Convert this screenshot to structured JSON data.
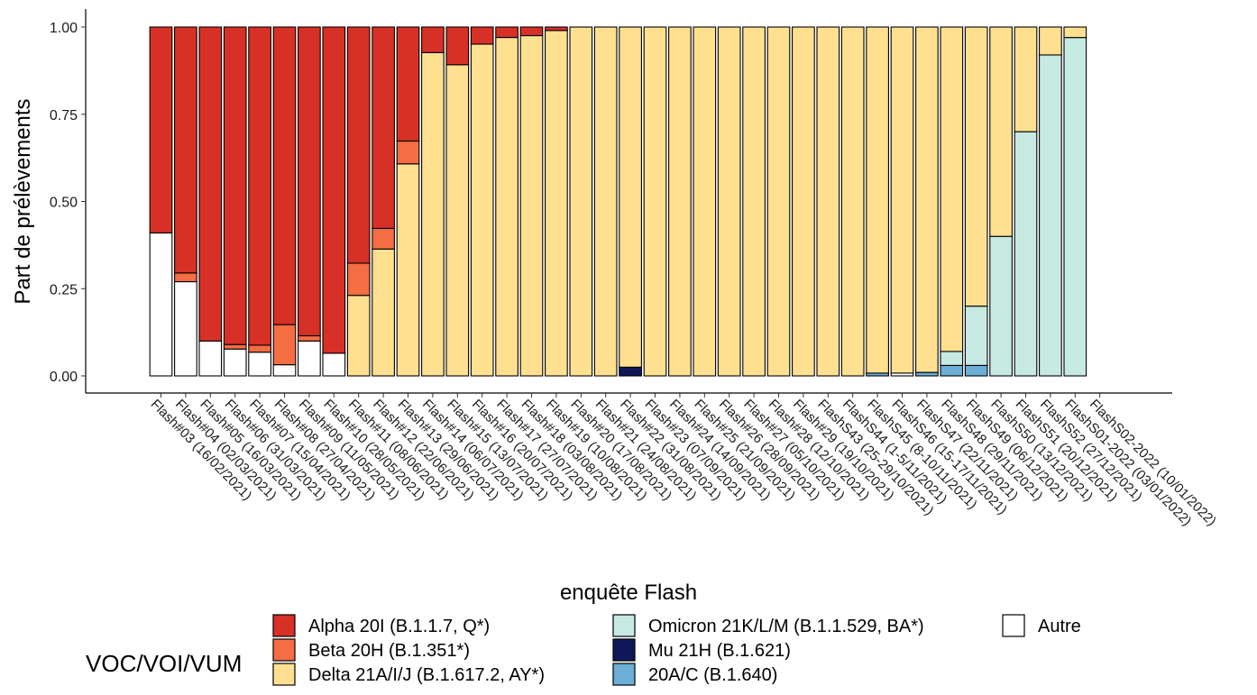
{
  "chart_data": {
    "type": "bar",
    "stacked": true,
    "normalized": true,
    "xlabel": "enquête Flash",
    "ylabel": "Part de prélèvements",
    "ylim": [
      0,
      1
    ],
    "yticks": [
      "0.00",
      "0.25",
      "0.50",
      "0.75",
      "1.00"
    ],
    "grid": false,
    "legend_title": "VOC/VOI/VUM",
    "legend_position": "bottom",
    "categories": [
      "Flash#03 (16/02/2021)",
      "Flash#04 (02/03/2021)",
      "Flash#05 (16/03/2021)",
      "Flash#06 (31/03/2021)",
      "Flash#07 (15/04/2021)",
      "Flash#08 (27/04/2021)",
      "Flash#09 (11/05/2021)",
      "Flash#10 (28/05/2021)",
      "Flash#11 (08/06/2021)",
      "Flash#12 (22/06/2021)",
      "Flash#13 (29/06/2021)",
      "Flash#14 (06/07/2021)",
      "Flash#15 (13/07/2021)",
      "Flash#16 (20/07/2021)",
      "Flash#17 (27/07/2021)",
      "Flash#18 (03/08/2021)",
      "Flash#19 (10/08/2021)",
      "Flash#20 (17/08/2021)",
      "Flash#21 (24/08/2021)",
      "Flash#22 (31/08/2021)",
      "Flash#23 (07/09/2021)",
      "Flash#24 (14/09/2021)",
      "Flash#25 (21/09/2021)",
      "Flash#26 (28/09/2021)",
      "Flash#27 (05/10/2021)",
      "Flash#28 (12/10/2021)",
      "Flash#29 (19/10/2021)",
      "FlashS43 (25-29/10/2021)",
      "FlashS44 (1-5/11/2021)",
      "FlashS45 (8-10/11/2021)",
      "FlashS46 (15-17/11/2021)",
      "FlashS47 (22/11/2021)",
      "FlashS48 (29/11/2021)",
      "FlashS49 (06/12/2021)",
      "FlashS50 (13/12/2021)",
      "FlashS51 (20/12/2021)",
      "FlashS52 (27/12/2021)",
      "FlashS01-2022 (03/01/2022)",
      "FlashS02-2022 (10/01/2022)"
    ],
    "series": [
      {
        "name": "Autre",
        "color": "#ffffff",
        "values": [
          0.41,
          0.27,
          0.1,
          0.077,
          0.068,
          0.032,
          0.1,
          0.065,
          0,
          0,
          0,
          0,
          0,
          0,
          0,
          0,
          0,
          0,
          0,
          0,
          0,
          0,
          0,
          0,
          0,
          0,
          0,
          0,
          0,
          0,
          0.008,
          0,
          0,
          0,
          0,
          0,
          0,
          0,
          0
        ]
      },
      {
        "name": "20A/C (B.1.640)",
        "color": "#6baed6",
        "values": [
          0,
          0,
          0,
          0,
          0,
          0,
          0,
          0,
          0,
          0,
          0,
          0,
          0,
          0,
          0,
          0,
          0,
          0,
          0,
          0,
          0,
          0,
          0,
          0,
          0,
          0,
          0,
          0,
          0,
          0.008,
          0,
          0.01,
          0.03,
          0.03,
          0,
          0,
          0,
          0,
          0
        ]
      },
      {
        "name": "Mu 21H (B.1.621)",
        "color": "#10175a",
        "values": [
          0,
          0,
          0,
          0,
          0,
          0,
          0,
          0,
          0,
          0,
          0,
          0,
          0,
          0,
          0,
          0,
          0,
          0,
          0,
          0.025,
          0,
          0,
          0,
          0,
          0,
          0,
          0,
          0,
          0,
          0,
          0,
          0,
          0,
          0,
          0,
          0,
          0,
          0,
          0
        ]
      },
      {
        "name": "Omicron 21K/L/M (B.1.1.529, BA*)",
        "color": "#c6e9e2",
        "values": [
          0,
          0,
          0,
          0,
          0,
          0,
          0,
          0,
          0,
          0,
          0,
          0,
          0,
          0,
          0,
          0,
          0,
          0,
          0,
          0,
          0,
          0,
          0,
          0,
          0,
          0,
          0,
          0,
          0,
          0,
          0,
          0,
          0.04,
          0.17,
          0.4,
          0.7,
          0.92,
          0.97,
          0
        ]
      },
      {
        "name": "Delta 21A/I/J (B.1.617.2, AY*)",
        "color": "#fee090",
        "values": [
          0,
          0,
          0,
          0,
          0,
          0,
          0,
          0,
          0.3,
          0.4,
          0.93,
          0.885,
          0.95,
          0.97,
          0.975,
          0.99,
          1,
          1,
          1,
          0.975,
          1,
          1,
          1,
          1,
          1,
          1,
          1,
          1,
          1,
          0.992,
          0.992,
          0.99,
          0.93,
          0.8,
          0.6,
          0.3,
          0.08,
          0.03,
          0
        ]
      },
      {
        "name": "Beta 20H (B.1.351*)",
        "color": "#f46d43",
        "values": [
          0,
          0.025,
          0,
          0.013,
          0.02,
          0.115,
          0.015,
          0,
          0.12,
          0.065,
          0.1,
          0,
          0,
          0,
          0,
          0,
          0,
          0,
          0,
          0,
          0,
          0,
          0,
          0,
          0,
          0,
          0,
          0,
          0,
          0,
          0,
          0,
          0,
          0,
          0,
          0,
          0,
          0,
          0
        ]
      },
      {
        "name": "Alpha 20I (B.1.1.7, Q*)",
        "color": "#d73027",
        "values": [
          0.59,
          0.705,
          0.9,
          0.91,
          0.912,
          0.853,
          0.885,
          0.935,
          0.88,
          0.635,
          0.5,
          0.07,
          0.115,
          0.05,
          0.03,
          0.025,
          0.01,
          0,
          0,
          0,
          0,
          0,
          0,
          0,
          0,
          0,
          0,
          0,
          0,
          0,
          0,
          0,
          0,
          0,
          0,
          0,
          0,
          0,
          0
        ]
      }
    ],
    "legend_items": [
      "Alpha 20I (B.1.1.7, Q*)",
      "Beta 20H (B.1.351*)",
      "Delta 21A/I/J (B.1.617.2, AY*)",
      "Omicron 21K/L/M (B.1.1.529, BA*)",
      "Mu 21H (B.1.621)",
      "20A/C (B.1.640)",
      "Autre"
    ]
  }
}
